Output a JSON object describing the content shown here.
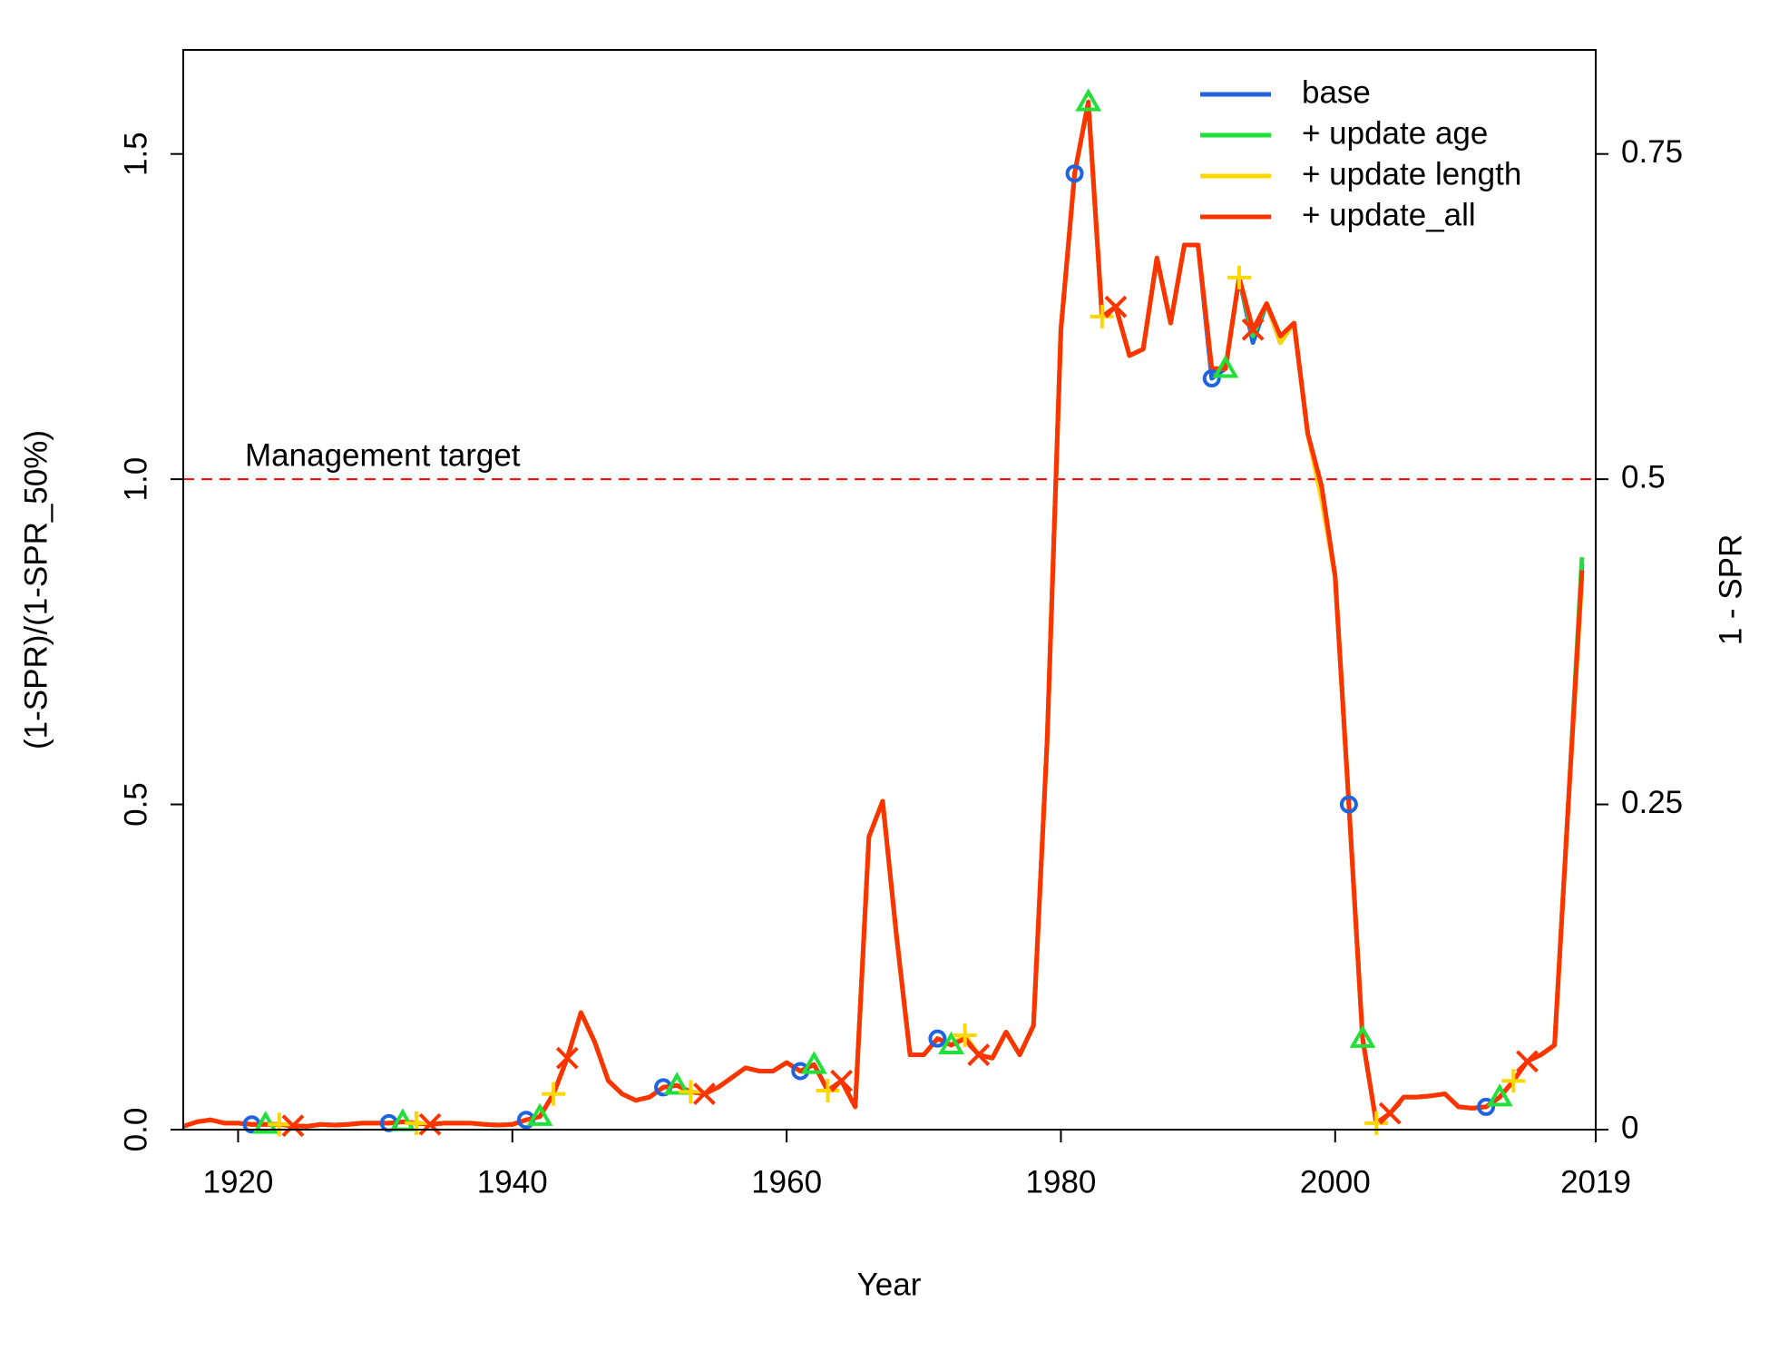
{
  "chart_data": {
    "type": "line",
    "xlabel": "Year",
    "ylabel": "(1-SPR)/(1-SPR_50%)",
    "y2label": "1 - SPR",
    "xlim": [
      1916,
      2019
    ],
    "xticks": [
      1920,
      1940,
      1960,
      1980,
      2000,
      2019
    ],
    "ylim": [
      0,
      1.66
    ],
    "yticks": [
      {
        "value": 0,
        "label": "0.0"
      },
      {
        "value": 0.5,
        "label": "0.5"
      },
      {
        "value": 1,
        "label": "1.0"
      },
      {
        "value": 1.5,
        "label": "1.5"
      }
    ],
    "y2lim": [
      0,
      0.83
    ],
    "y2ticks": [
      0,
      0.25,
      0.5,
      0.75
    ],
    "legend": "topright",
    "reference_line": {
      "value": 1,
      "label": "Management target",
      "color": "#ff0000"
    },
    "x": [
      1916,
      1917,
      1918,
      1919,
      1920,
      1921,
      1922,
      1923,
      1924,
      1925,
      1926,
      1927,
      1928,
      1929,
      1930,
      1931,
      1932,
      1933,
      1934,
      1935,
      1936,
      1937,
      1938,
      1939,
      1940,
      1941,
      1942,
      1943,
      1944,
      1945,
      1946,
      1947,
      1948,
      1949,
      1950,
      1951,
      1952,
      1953,
      1954,
      1955,
      1956,
      1957,
      1958,
      1959,
      1960,
      1961,
      1962,
      1963,
      1964,
      1965,
      1966,
      1967,
      1968,
      1969,
      1970,
      1971,
      1972,
      1973,
      1974,
      1975,
      1976,
      1977,
      1978,
      1979,
      1980,
      1981,
      1982,
      1983,
      1984,
      1985,
      1986,
      1987,
      1988,
      1989,
      1990,
      1991,
      1992,
      1993,
      1994,
      1995,
      1996,
      1997,
      1998,
      1999,
      2000,
      2001,
      2002,
      2003,
      2004,
      2005,
      2006,
      2007,
      2008,
      2009,
      2010,
      2011,
      2012,
      2013,
      2014,
      2015,
      2016,
      2017,
      2018
    ],
    "series": [
      {
        "name": "base",
        "color": "#1f63e0",
        "marker": "circle",
        "values": [
          0.005,
          0.012,
          0.015,
          0.01,
          0.01,
          0.008,
          0.008,
          0.008,
          0.006,
          0.005,
          0.008,
          0.007,
          0.008,
          0.01,
          0.01,
          0.01,
          0.012,
          0.01,
          0.008,
          0.01,
          0.01,
          0.01,
          0.008,
          0.007,
          0.008,
          0.015,
          0.02,
          0.055,
          0.11,
          0.18,
          0.135,
          0.075,
          0.055,
          0.045,
          0.05,
          0.065,
          0.068,
          0.058,
          0.055,
          0.065,
          0.08,
          0.095,
          0.09,
          0.09,
          0.103,
          0.09,
          0.1,
          0.06,
          0.075,
          0.035,
          0.45,
          0.505,
          0.3,
          0.115,
          0.115,
          0.14,
          0.13,
          0.14,
          0.115,
          0.11,
          0.15,
          0.115,
          0.16,
          0.6,
          1.23,
          1.47,
          1.58,
          1.25,
          1.265,
          1.19,
          1.2,
          1.34,
          1.24,
          1.36,
          1.36,
          1.155,
          1.17,
          1.31,
          1.21,
          1.27,
          1.21,
          1.24,
          1.07,
          0.99,
          0.85,
          0.5,
          0.14,
          0.01,
          0.025,
          0.05,
          0.05,
          0.052,
          0.055,
          0.035,
          0.033,
          0.035,
          0.05,
          0.075,
          0.105,
          0.115,
          0.13,
          0.5,
          0.87
        ]
      },
      {
        "name": "+ update age",
        "color": "#22e03a",
        "marker": "triangle",
        "values": [
          0.005,
          0.012,
          0.015,
          0.01,
          0.01,
          0.008,
          0.008,
          0.008,
          0.006,
          0.005,
          0.008,
          0.007,
          0.008,
          0.01,
          0.01,
          0.01,
          0.012,
          0.01,
          0.008,
          0.01,
          0.01,
          0.01,
          0.008,
          0.007,
          0.008,
          0.015,
          0.02,
          0.055,
          0.11,
          0.18,
          0.135,
          0.075,
          0.055,
          0.045,
          0.05,
          0.065,
          0.068,
          0.058,
          0.055,
          0.065,
          0.08,
          0.095,
          0.09,
          0.09,
          0.103,
          0.09,
          0.1,
          0.06,
          0.075,
          0.035,
          0.45,
          0.505,
          0.3,
          0.115,
          0.115,
          0.14,
          0.13,
          0.14,
          0.115,
          0.11,
          0.15,
          0.115,
          0.16,
          0.6,
          1.23,
          1.47,
          1.58,
          1.25,
          1.265,
          1.19,
          1.2,
          1.34,
          1.24,
          1.36,
          1.36,
          1.17,
          1.17,
          1.31,
          1.22,
          1.27,
          1.22,
          1.24,
          1.07,
          0.99,
          0.85,
          0.5,
          0.14,
          0.01,
          0.025,
          0.05,
          0.05,
          0.052,
          0.055,
          0.035,
          0.033,
          0.035,
          0.05,
          0.075,
          0.105,
          0.115,
          0.13,
          0.5,
          0.88
        ]
      },
      {
        "name": "+ update length",
        "color": "#ffd700",
        "marker": "plus",
        "values": [
          0.005,
          0.012,
          0.015,
          0.01,
          0.01,
          0.008,
          0.008,
          0.008,
          0.006,
          0.005,
          0.008,
          0.007,
          0.008,
          0.01,
          0.01,
          0.01,
          0.012,
          0.01,
          0.008,
          0.01,
          0.01,
          0.01,
          0.008,
          0.007,
          0.008,
          0.015,
          0.02,
          0.055,
          0.11,
          0.18,
          0.135,
          0.075,
          0.055,
          0.045,
          0.05,
          0.065,
          0.068,
          0.058,
          0.055,
          0.065,
          0.08,
          0.095,
          0.09,
          0.09,
          0.103,
          0.09,
          0.1,
          0.06,
          0.075,
          0.035,
          0.45,
          0.505,
          0.3,
          0.115,
          0.115,
          0.14,
          0.13,
          0.145,
          0.115,
          0.11,
          0.15,
          0.115,
          0.16,
          0.6,
          1.23,
          1.47,
          1.58,
          1.25,
          1.265,
          1.19,
          1.2,
          1.34,
          1.24,
          1.36,
          1.36,
          1.17,
          1.17,
          1.31,
          1.23,
          1.27,
          1.21,
          1.24,
          1.07,
          0.97,
          0.85,
          0.5,
          0.14,
          0.01,
          0.025,
          0.05,
          0.05,
          0.052,
          0.055,
          0.035,
          0.033,
          0.035,
          0.05,
          0.075,
          0.105,
          0.115,
          0.13,
          0.5,
          0.85
        ]
      },
      {
        "name": "+ update_all",
        "color": "#ff3300",
        "marker": "cross",
        "values": [
          0.005,
          0.012,
          0.015,
          0.01,
          0.01,
          0.008,
          0.008,
          0.008,
          0.006,
          0.005,
          0.008,
          0.007,
          0.008,
          0.01,
          0.01,
          0.01,
          0.012,
          0.01,
          0.008,
          0.01,
          0.01,
          0.01,
          0.008,
          0.007,
          0.008,
          0.015,
          0.02,
          0.055,
          0.11,
          0.18,
          0.135,
          0.075,
          0.055,
          0.045,
          0.05,
          0.065,
          0.068,
          0.058,
          0.055,
          0.065,
          0.08,
          0.095,
          0.09,
          0.09,
          0.103,
          0.09,
          0.1,
          0.06,
          0.075,
          0.035,
          0.45,
          0.505,
          0.3,
          0.115,
          0.115,
          0.14,
          0.13,
          0.14,
          0.115,
          0.11,
          0.15,
          0.115,
          0.16,
          0.6,
          1.23,
          1.47,
          1.58,
          1.25,
          1.265,
          1.19,
          1.2,
          1.34,
          1.24,
          1.36,
          1.36,
          1.17,
          1.17,
          1.31,
          1.23,
          1.27,
          1.22,
          1.24,
          1.07,
          0.99,
          0.85,
          0.5,
          0.14,
          0.01,
          0.025,
          0.05,
          0.05,
          0.052,
          0.055,
          0.035,
          0.033,
          0.035,
          0.05,
          0.075,
          0.105,
          0.115,
          0.13,
          0.5,
          0.86
        ]
      }
    ]
  }
}
